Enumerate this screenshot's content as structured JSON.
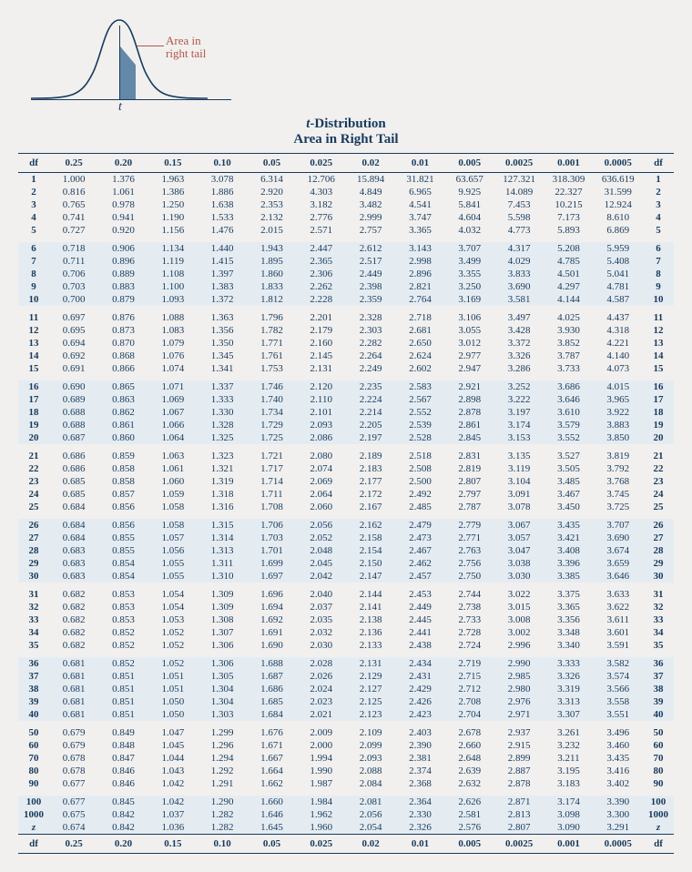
{
  "diagram": {
    "t_label": "t",
    "annotation": "Area in\nright tail"
  },
  "title": {
    "line1_it": "t",
    "line1_rest": "-Distribution",
    "line2": "Area in Right Tail"
  },
  "columns": {
    "left": "df",
    "right": "df",
    "alphas": [
      "0.25",
      "0.20",
      "0.15",
      "0.10",
      "0.05",
      "0.025",
      "0.02",
      "0.01",
      "0.005",
      "0.0025",
      "0.001",
      "0.0005"
    ]
  },
  "groups": [
    {
      "shade": false,
      "rows": [
        {
          "df": "1",
          "v": [
            "1.000",
            "1.376",
            "1.963",
            "3.078",
            "6.314",
            "12.706",
            "15.894",
            "31.821",
            "63.657",
            "127.321",
            "318.309",
            "636.619"
          ]
        },
        {
          "df": "2",
          "v": [
            "0.816",
            "1.061",
            "1.386",
            "1.886",
            "2.920",
            "4.303",
            "4.849",
            "6.965",
            "9.925",
            "14.089",
            "22.327",
            "31.599"
          ]
        },
        {
          "df": "3",
          "v": [
            "0.765",
            "0.978",
            "1.250",
            "1.638",
            "2.353",
            "3.182",
            "3.482",
            "4.541",
            "5.841",
            "7.453",
            "10.215",
            "12.924"
          ]
        },
        {
          "df": "4",
          "v": [
            "0.741",
            "0.941",
            "1.190",
            "1.533",
            "2.132",
            "2.776",
            "2.999",
            "3.747",
            "4.604",
            "5.598",
            "7.173",
            "8.610"
          ]
        },
        {
          "df": "5",
          "v": [
            "0.727",
            "0.920",
            "1.156",
            "1.476",
            "2.015",
            "2.571",
            "2.757",
            "3.365",
            "4.032",
            "4.773",
            "5.893",
            "6.869"
          ]
        }
      ]
    },
    {
      "shade": true,
      "rows": [
        {
          "df": "6",
          "v": [
            "0.718",
            "0.906",
            "1.134",
            "1.440",
            "1.943",
            "2.447",
            "2.612",
            "3.143",
            "3.707",
            "4.317",
            "5.208",
            "5.959"
          ]
        },
        {
          "df": "7",
          "v": [
            "0.711",
            "0.896",
            "1.119",
            "1.415",
            "1.895",
            "2.365",
            "2.517",
            "2.998",
            "3.499",
            "4.029",
            "4.785",
            "5.408"
          ]
        },
        {
          "df": "8",
          "v": [
            "0.706",
            "0.889",
            "1.108",
            "1.397",
            "1.860",
            "2.306",
            "2.449",
            "2.896",
            "3.355",
            "3.833",
            "4.501",
            "5.041"
          ]
        },
        {
          "df": "9",
          "v": [
            "0.703",
            "0.883",
            "1.100",
            "1.383",
            "1.833",
            "2.262",
            "2.398",
            "2.821",
            "3.250",
            "3.690",
            "4.297",
            "4.781"
          ]
        },
        {
          "df": "10",
          "v": [
            "0.700",
            "0.879",
            "1.093",
            "1.372",
            "1.812",
            "2.228",
            "2.359",
            "2.764",
            "3.169",
            "3.581",
            "4.144",
            "4.587"
          ]
        }
      ]
    },
    {
      "shade": false,
      "rows": [
        {
          "df": "11",
          "v": [
            "0.697",
            "0.876",
            "1.088",
            "1.363",
            "1.796",
            "2.201",
            "2.328",
            "2.718",
            "3.106",
            "3.497",
            "4.025",
            "4.437"
          ]
        },
        {
          "df": "12",
          "v": [
            "0.695",
            "0.873",
            "1.083",
            "1.356",
            "1.782",
            "2.179",
            "2.303",
            "2.681",
            "3.055",
            "3.428",
            "3.930",
            "4.318"
          ]
        },
        {
          "df": "13",
          "v": [
            "0.694",
            "0.870",
            "1.079",
            "1.350",
            "1.771",
            "2.160",
            "2.282",
            "2.650",
            "3.012",
            "3.372",
            "3.852",
            "4.221"
          ]
        },
        {
          "df": "14",
          "v": [
            "0.692",
            "0.868",
            "1.076",
            "1.345",
            "1.761",
            "2.145",
            "2.264",
            "2.624",
            "2.977",
            "3.326",
            "3.787",
            "4.140"
          ]
        },
        {
          "df": "15",
          "v": [
            "0.691",
            "0.866",
            "1.074",
            "1.341",
            "1.753",
            "2.131",
            "2.249",
            "2.602",
            "2.947",
            "3.286",
            "3.733",
            "4.073"
          ]
        }
      ]
    },
    {
      "shade": true,
      "rows": [
        {
          "df": "16",
          "v": [
            "0.690",
            "0.865",
            "1.071",
            "1.337",
            "1.746",
            "2.120",
            "2.235",
            "2.583",
            "2.921",
            "3.252",
            "3.686",
            "4.015"
          ]
        },
        {
          "df": "17",
          "v": [
            "0.689",
            "0.863",
            "1.069",
            "1.333",
            "1.740",
            "2.110",
            "2.224",
            "2.567",
            "2.898",
            "3.222",
            "3.646",
            "3.965"
          ]
        },
        {
          "df": "18",
          "v": [
            "0.688",
            "0.862",
            "1.067",
            "1.330",
            "1.734",
            "2.101",
            "2.214",
            "2.552",
            "2.878",
            "3.197",
            "3.610",
            "3.922"
          ]
        },
        {
          "df": "19",
          "v": [
            "0.688",
            "0.861",
            "1.066",
            "1.328",
            "1.729",
            "2.093",
            "2.205",
            "2.539",
            "2.861",
            "3.174",
            "3.579",
            "3.883"
          ]
        },
        {
          "df": "20",
          "v": [
            "0.687",
            "0.860",
            "1.064",
            "1.325",
            "1.725",
            "2.086",
            "2.197",
            "2.528",
            "2.845",
            "3.153",
            "3.552",
            "3.850"
          ]
        }
      ]
    },
    {
      "shade": false,
      "rows": [
        {
          "df": "21",
          "v": [
            "0.686",
            "0.859",
            "1.063",
            "1.323",
            "1.721",
            "2.080",
            "2.189",
            "2.518",
            "2.831",
            "3.135",
            "3.527",
            "3.819"
          ]
        },
        {
          "df": "22",
          "v": [
            "0.686",
            "0.858",
            "1.061",
            "1.321",
            "1.717",
            "2.074",
            "2.183",
            "2.508",
            "2.819",
            "3.119",
            "3.505",
            "3.792"
          ]
        },
        {
          "df": "23",
          "v": [
            "0.685",
            "0.858",
            "1.060",
            "1.319",
            "1.714",
            "2.069",
            "2.177",
            "2.500",
            "2.807",
            "3.104",
            "3.485",
            "3.768"
          ]
        },
        {
          "df": "24",
          "v": [
            "0.685",
            "0.857",
            "1.059",
            "1.318",
            "1.711",
            "2.064",
            "2.172",
            "2.492",
            "2.797",
            "3.091",
            "3.467",
            "3.745"
          ]
        },
        {
          "df": "25",
          "v": [
            "0.684",
            "0.856",
            "1.058",
            "1.316",
            "1.708",
            "2.060",
            "2.167",
            "2.485",
            "2.787",
            "3.078",
            "3.450",
            "3.725"
          ]
        }
      ]
    },
    {
      "shade": true,
      "rows": [
        {
          "df": "26",
          "v": [
            "0.684",
            "0.856",
            "1.058",
            "1.315",
            "1.706",
            "2.056",
            "2.162",
            "2.479",
            "2.779",
            "3.067",
            "3.435",
            "3.707"
          ]
        },
        {
          "df": "27",
          "v": [
            "0.684",
            "0.855",
            "1.057",
            "1.314",
            "1.703",
            "2.052",
            "2.158",
            "2.473",
            "2.771",
            "3.057",
            "3.421",
            "3.690"
          ]
        },
        {
          "df": "28",
          "v": [
            "0.683",
            "0.855",
            "1.056",
            "1.313",
            "1.701",
            "2.048",
            "2.154",
            "2.467",
            "2.763",
            "3.047",
            "3.408",
            "3.674"
          ]
        },
        {
          "df": "29",
          "v": [
            "0.683",
            "0.854",
            "1.055",
            "1.311",
            "1.699",
            "2.045",
            "2.150",
            "2.462",
            "2.756",
            "3.038",
            "3.396",
            "3.659"
          ]
        },
        {
          "df": "30",
          "v": [
            "0.683",
            "0.854",
            "1.055",
            "1.310",
            "1.697",
            "2.042",
            "2.147",
            "2.457",
            "2.750",
            "3.030",
            "3.385",
            "3.646"
          ]
        }
      ]
    },
    {
      "shade": false,
      "rows": [
        {
          "df": "31",
          "v": [
            "0.682",
            "0.853",
            "1.054",
            "1.309",
            "1.696",
            "2.040",
            "2.144",
            "2.453",
            "2.744",
            "3.022",
            "3.375",
            "3.633"
          ]
        },
        {
          "df": "32",
          "v": [
            "0.682",
            "0.853",
            "1.054",
            "1.309",
            "1.694",
            "2.037",
            "2.141",
            "2.449",
            "2.738",
            "3.015",
            "3.365",
            "3.622"
          ]
        },
        {
          "df": "33",
          "v": [
            "0.682",
            "0.853",
            "1.053",
            "1.308",
            "1.692",
            "2.035",
            "2.138",
            "2.445",
            "2.733",
            "3.008",
            "3.356",
            "3.611"
          ]
        },
        {
          "df": "34",
          "v": [
            "0.682",
            "0.852",
            "1.052",
            "1.307",
            "1.691",
            "2.032",
            "2.136",
            "2.441",
            "2.728",
            "3.002",
            "3.348",
            "3.601"
          ]
        },
        {
          "df": "35",
          "v": [
            "0.682",
            "0.852",
            "1.052",
            "1.306",
            "1.690",
            "2.030",
            "2.133",
            "2.438",
            "2.724",
            "2.996",
            "3.340",
            "3.591"
          ]
        }
      ]
    },
    {
      "shade": true,
      "rows": [
        {
          "df": "36",
          "v": [
            "0.681",
            "0.852",
            "1.052",
            "1.306",
            "1.688",
            "2.028",
            "2.131",
            "2.434",
            "2.719",
            "2.990",
            "3.333",
            "3.582"
          ]
        },
        {
          "df": "37",
          "v": [
            "0.681",
            "0.851",
            "1.051",
            "1.305",
            "1.687",
            "2.026",
            "2.129",
            "2.431",
            "2.715",
            "2.985",
            "3.326",
            "3.574"
          ]
        },
        {
          "df": "38",
          "v": [
            "0.681",
            "0.851",
            "1.051",
            "1.304",
            "1.686",
            "2.024",
            "2.127",
            "2.429",
            "2.712",
            "2.980",
            "3.319",
            "3.566"
          ]
        },
        {
          "df": "39",
          "v": [
            "0.681",
            "0.851",
            "1.050",
            "1.304",
            "1.685",
            "2.023",
            "2.125",
            "2.426",
            "2.708",
            "2.976",
            "3.313",
            "3.558"
          ]
        },
        {
          "df": "40",
          "v": [
            "0.681",
            "0.851",
            "1.050",
            "1.303",
            "1.684",
            "2.021",
            "2.123",
            "2.423",
            "2.704",
            "2.971",
            "3.307",
            "3.551"
          ]
        }
      ]
    },
    {
      "shade": false,
      "rows": [
        {
          "df": "50",
          "v": [
            "0.679",
            "0.849",
            "1.047",
            "1.299",
            "1.676",
            "2.009",
            "2.109",
            "2.403",
            "2.678",
            "2.937",
            "3.261",
            "3.496"
          ]
        },
        {
          "df": "60",
          "v": [
            "0.679",
            "0.848",
            "1.045",
            "1.296",
            "1.671",
            "2.000",
            "2.099",
            "2.390",
            "2.660",
            "2.915",
            "3.232",
            "3.460"
          ]
        },
        {
          "df": "70",
          "v": [
            "0.678",
            "0.847",
            "1.044",
            "1.294",
            "1.667",
            "1.994",
            "2.093",
            "2.381",
            "2.648",
            "2.899",
            "3.211",
            "3.435"
          ]
        },
        {
          "df": "80",
          "v": [
            "0.678",
            "0.846",
            "1.043",
            "1.292",
            "1.664",
            "1.990",
            "2.088",
            "2.374",
            "2.639",
            "2.887",
            "3.195",
            "3.416"
          ]
        },
        {
          "df": "90",
          "v": [
            "0.677",
            "0.846",
            "1.042",
            "1.291",
            "1.662",
            "1.987",
            "2.084",
            "2.368",
            "2.632",
            "2.878",
            "3.183",
            "3.402"
          ]
        }
      ]
    },
    {
      "shade": true,
      "rows": [
        {
          "df": "100",
          "v": [
            "0.677",
            "0.845",
            "1.042",
            "1.290",
            "1.660",
            "1.984",
            "2.081",
            "2.364",
            "2.626",
            "2.871",
            "3.174",
            "3.390"
          ]
        },
        {
          "df": "1000",
          "v": [
            "0.675",
            "0.842",
            "1.037",
            "1.282",
            "1.646",
            "1.962",
            "2.056",
            "2.330",
            "2.581",
            "2.813",
            "3.098",
            "3.300"
          ]
        },
        {
          "df": "z",
          "v": [
            "0.674",
            "0.842",
            "1.036",
            "1.282",
            "1.645",
            "1.960",
            "2.054",
            "2.326",
            "2.576",
            "2.807",
            "3.090",
            "3.291"
          ],
          "z": true
        }
      ]
    }
  ]
}
